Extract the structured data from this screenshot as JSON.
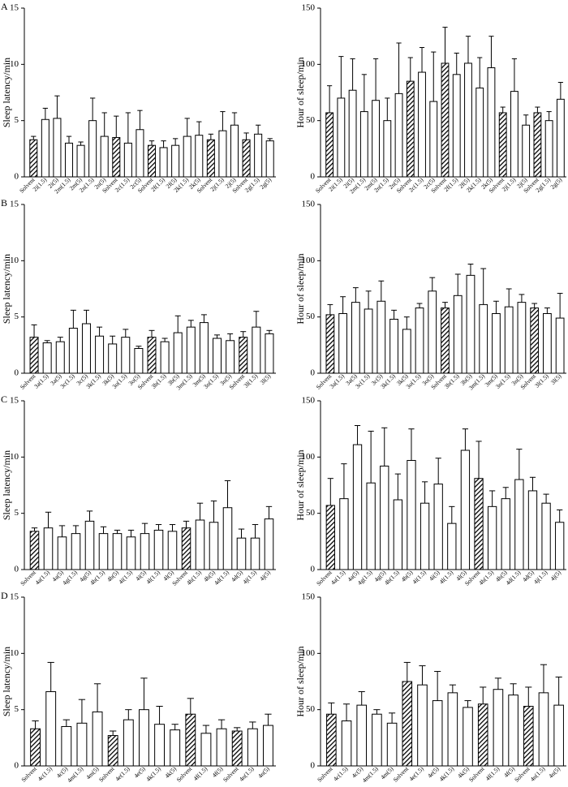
{
  "chart_data": [
    {
      "type": "bar",
      "panel": "A",
      "ylabel": "Sleep latency/min",
      "color": "#000000",
      "categories": [
        "Solvent",
        "2i(1.5)",
        "2i(5)",
        "2m(1.5)",
        "2m(5)",
        "2n(1.5)",
        "2n(5)",
        "Solvent",
        "2c(1.5)",
        "2c(5)",
        "Solvent",
        "2f(1.5)",
        "2f(5)",
        "2k(1.5)",
        "2k(5)",
        "Solvent",
        "2j(1.5)",
        "2j(5)",
        "Solvent",
        "2g(1.5)",
        "2g(5)"
      ],
      "values": [
        3.3,
        5.1,
        5.2,
        3.0,
        2.8,
        5.0,
        3.6,
        3.5,
        3.0,
        4.2,
        2.8,
        2.6,
        2.8,
        3.6,
        3.7,
        3.3,
        4.1,
        4.6,
        3.3,
        3.8,
        3.2
      ],
      "errors": [
        0.3,
        1.0,
        2.0,
        0.6,
        0.3,
        2.0,
        2.1,
        1.9,
        2.7,
        1.7,
        0.4,
        0.6,
        0.6,
        1.6,
        1.2,
        0.5,
        1.7,
        1.1,
        0.6,
        0.8,
        0.2
      ],
      "ylim": [
        0,
        15
      ],
      "yticks": [
        0,
        5,
        10,
        15
      ]
    },
    {
      "type": "bar",
      "ylabel": "Hour of sleep/min",
      "color": "#000000",
      "categories": [
        "Solvent",
        "2i(1.5)",
        "2i(5)",
        "2m(1.5)",
        "2m(5)",
        "2n(1.5)",
        "2n(5)",
        "Solvent",
        "2c(1.5)",
        "2c(5)",
        "Solvent",
        "2f(1.5)",
        "2f(5)",
        "2k(1.5)",
        "2k(5)",
        "Solvent",
        "2j(1.5)",
        "2j(5)",
        "Solvent",
        "2g(1.5)",
        "2g(5)"
      ],
      "values": [
        57,
        70,
        77,
        58,
        68,
        50,
        74,
        85,
        93,
        67,
        101,
        91,
        101,
        79,
        97,
        57,
        76,
        46,
        57,
        50,
        69
      ],
      "errors": [
        24,
        37,
        28,
        33,
        37,
        20,
        45,
        21,
        22,
        44,
        32,
        19,
        24,
        27,
        28,
        5,
        29,
        9,
        5,
        8,
        15
      ],
      "ylim": [
        0,
        150
      ],
      "yticks": [
        0,
        50,
        100,
        150
      ]
    },
    {
      "type": "bar",
      "panel": "B",
      "ylabel": "Sleep latency/min",
      "color": "#000000",
      "categories": [
        "Solvent",
        "3a(1.5)",
        "3a(5)",
        "3c(1.5)",
        "3c(5)",
        "3k(1.5)",
        "3k(5)",
        "3o(1.5)",
        "3o(5)",
        "Solvent",
        "3b(1.5)",
        "3b(5)",
        "3m(1.5)",
        "3m(5)",
        "3n(1.5)",
        "3n(5)",
        "Solvent",
        "3l(1.5)",
        "3l(5)"
      ],
      "values": [
        3.2,
        2.7,
        2.8,
        4.0,
        4.4,
        3.3,
        2.6,
        3.2,
        2.2,
        3.2,
        2.8,
        3.6,
        4.1,
        4.5,
        3.1,
        2.9,
        3.2,
        4.1,
        3.5
      ],
      "errors": [
        1.1,
        0.2,
        0.4,
        1.6,
        1.2,
        0.8,
        0.7,
        0.7,
        0.2,
        0.6,
        0.3,
        1.5,
        0.6,
        0.7,
        0.3,
        0.6,
        0.5,
        1.4,
        0.3
      ],
      "ylim": [
        0,
        15
      ],
      "yticks": [
        0,
        5,
        10,
        15
      ]
    },
    {
      "type": "bar",
      "ylabel": "Hour of sleep/min",
      "color": "#000000",
      "categories": [
        "Solvent",
        "3a(1.5)",
        "3a(5)",
        "3c(1.5)",
        "3c(5)",
        "3k(1.5)",
        "3k(5)",
        "3o(1.5)",
        "3o(5)",
        "Solvent",
        "3b(1.5)",
        "3b(5)",
        "3m(1.5)",
        "3m(5)",
        "3n(1.5)",
        "3n(5)",
        "Solvent",
        "3l(1.5)",
        "3l(5)"
      ],
      "values": [
        52,
        53,
        63,
        57,
        64,
        48,
        39,
        58,
        73,
        58,
        69,
        87,
        61,
        53,
        59,
        63,
        58,
        53,
        49
      ],
      "errors": [
        9,
        15,
        13,
        16,
        18,
        8,
        11,
        4,
        12,
        5,
        19,
        10,
        32,
        11,
        16,
        7,
        4,
        5,
        22
      ],
      "ylim": [
        0,
        150
      ],
      "yticks": [
        0,
        50,
        100,
        150
      ]
    },
    {
      "type": "bar",
      "panel": "C",
      "ylabel": "Sleep latency/min",
      "color": "#000000",
      "categories": [
        "Solvent",
        "4a(1.5)",
        "4a(5)",
        "4g(1.5)",
        "4g(5)",
        "4b(1.5)",
        "4b(5)",
        "4i(1.5)",
        "4i(5)",
        "4l(1.5)",
        "4l(5)",
        "Solvent",
        "4h(1.5)",
        "4h(5)",
        "4d(1.5)",
        "4d(5)",
        "4j(1.5)",
        "4j(5)"
      ],
      "values": [
        3.4,
        3.7,
        2.9,
        3.2,
        4.3,
        3.2,
        3.2,
        2.9,
        3.2,
        3.5,
        3.4,
        3.7,
        4.4,
        4.2,
        5.5,
        2.8,
        2.8,
        4.5
      ],
      "errors": [
        0.3,
        1.4,
        1.0,
        0.7,
        0.9,
        0.6,
        0.3,
        0.6,
        0.9,
        0.5,
        0.6,
        0.6,
        1.5,
        1.9,
        2.4,
        0.8,
        1.2,
        1.1
      ],
      "ylim": [
        0,
        15
      ],
      "yticks": [
        0,
        5,
        10,
        15
      ]
    },
    {
      "type": "bar",
      "ylabel": "Hour of sleep/min",
      "color": "#000000",
      "categories": [
        "Solvent",
        "4a(1.5)",
        "4a(5)",
        "4g(1.5)",
        "4g(5)",
        "4b(1.5)",
        "4b(5)",
        "4i(1.5)",
        "4i(5)",
        "4l(1.5)",
        "4l(5)",
        "Solvent",
        "4h(1.5)",
        "4h(5)",
        "4d(1.5)",
        "4d(5)",
        "4j(1.5)",
        "4j(5)"
      ],
      "values": [
        57,
        63,
        111,
        77,
        92,
        62,
        97,
        59,
        76,
        41,
        106,
        81,
        56,
        63,
        80,
        70,
        59,
        42
      ],
      "errors": [
        24,
        31,
        17,
        46,
        34,
        23,
        28,
        19,
        23,
        15,
        19,
        33,
        14,
        10,
        27,
        12,
        8,
        11
      ],
      "ylim": [
        0,
        150
      ],
      "yticks": [
        0,
        50,
        100,
        150
      ]
    },
    {
      "type": "bar",
      "panel": "D",
      "ylabel": "Sleep latency/min",
      "color": "#000000",
      "categories": [
        "Solvent",
        "4c(1.5)",
        "4c(5)",
        "4m(1.5)",
        "4m(5)",
        "Solvent",
        "4e(1.5)",
        "4e(5)",
        "4k(1.5)",
        "4k(5)",
        "Solvent",
        "4f(1.5)",
        "4f(5)",
        "Solvent",
        "4n(1.5)",
        "4n(5)"
      ],
      "values": [
        3.3,
        6.6,
        3.5,
        3.8,
        4.8,
        2.7,
        4.1,
        5.0,
        3.7,
        3.2,
        4.6,
        2.9,
        3.3,
        3.1,
        3.3,
        3.6
      ],
      "errors": [
        0.7,
        2.6,
        0.6,
        2.1,
        2.5,
        0.4,
        0.9,
        2.8,
        1.6,
        0.5,
        1.4,
        0.7,
        0.8,
        0.3,
        0.6,
        1.0
      ],
      "ylim": [
        0,
        15
      ],
      "yticks": [
        0,
        5,
        10,
        15
      ]
    },
    {
      "type": "bar",
      "ylabel": "Hour of sleep/min",
      "color": "#000000",
      "categories": [
        "Solvent",
        "4c(1.5)",
        "4c(5)",
        "4m(1.5)",
        "4m(5)",
        "Solvent",
        "4e(1.5)",
        "4e(5)",
        "4k(1.5)",
        "4k(5)",
        "Solvent",
        "4f(1.5)",
        "4f(5)",
        "Solvent",
        "4n(1.5)",
        "4n(5)"
      ],
      "values": [
        46,
        40,
        54,
        46,
        38,
        75,
        72,
        58,
        65,
        52,
        55,
        68,
        63,
        53,
        65,
        54
      ],
      "errors": [
        10,
        15,
        12,
        4,
        9,
        17,
        17,
        26,
        7,
        6,
        15,
        10,
        10,
        17,
        25,
        25
      ],
      "ylim": [
        0,
        150
      ],
      "yticks": [
        0,
        50,
        100,
        150
      ]
    }
  ]
}
